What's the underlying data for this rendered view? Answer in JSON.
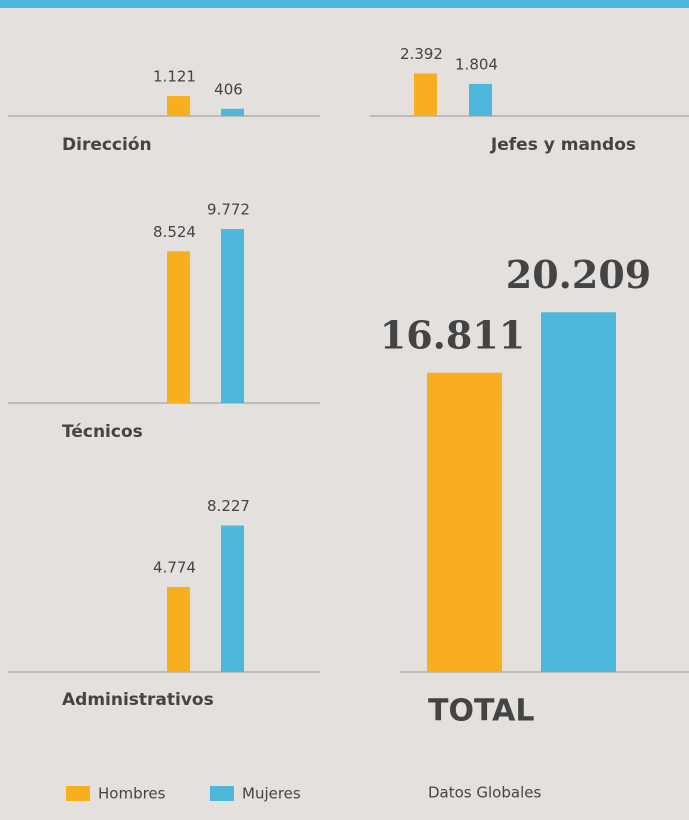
{
  "chart_data": {
    "type": "bar",
    "categories": [
      "Dirección",
      "Jefes y mandos",
      "Técnicos",
      "Administrativos",
      "TOTAL"
    ],
    "series": [
      {
        "name": "Hombres",
        "color": "#f9ae1f",
        "values": [
          1121,
          2392,
          8524,
          4774,
          16811
        ],
        "value_labels": [
          "1.121",
          "2.392",
          "8.524",
          "4.774",
          "16.811"
        ]
      },
      {
        "name": "Mujeres",
        "color": "#4db8dc",
        "values": [
          406,
          1804,
          9772,
          8227,
          20209
        ],
        "value_labels": [
          "406",
          "1.804",
          "9.772",
          "8.227",
          "20.209"
        ]
      }
    ],
    "caption": "Datos Globales"
  }
}
